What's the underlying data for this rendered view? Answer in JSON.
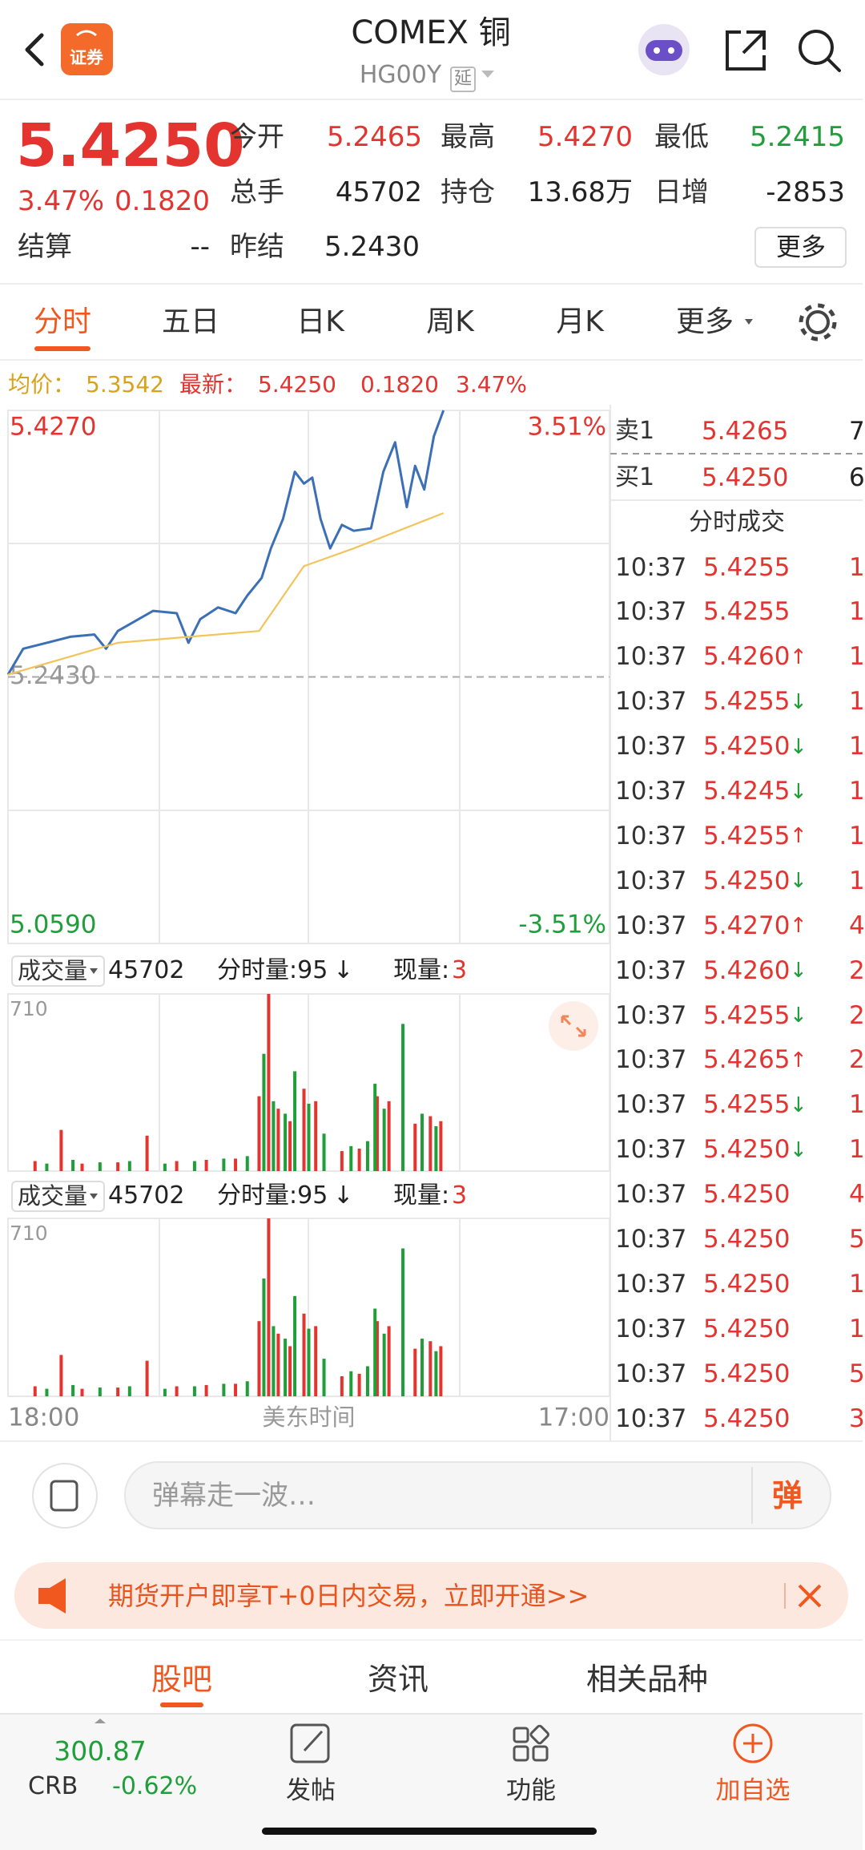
{
  "header": {
    "logo": "证券",
    "title": "COMEX 铜",
    "code": "HG00Y",
    "tag": "延"
  },
  "quote": {
    "price": "5.4250",
    "change_pct": "3.47%",
    "change": "0.1820",
    "fields": [
      {
        "label": "今开",
        "value": "5.2465"
      },
      {
        "label": "最高",
        "value": "5.4270"
      },
      {
        "label": "最低",
        "value": "5.2415"
      },
      {
        "label": "总手",
        "value": "45702"
      },
      {
        "label": "持仓",
        "value": "13.68万"
      },
      {
        "label": "日增",
        "value": "-2853"
      },
      {
        "label": "结算",
        "value": "--"
      },
      {
        "label": "昨结",
        "value": "5.2430"
      }
    ],
    "more": "更多"
  },
  "tabs": [
    "分时",
    "五日",
    "日K",
    "周K",
    "月K",
    "更多"
  ],
  "info": {
    "avg_label": "均价：",
    "avg": "5.3542",
    "latest_label": "最新：",
    "latest": "5.4250",
    "change": "0.1820",
    "change_pct": "3.47%"
  },
  "chart_data": [
    {
      "type": "line",
      "xlabel": "美东时间",
      "xlim": [
        0,
        1380
      ],
      "xticks": [
        {
          "value": 0,
          "label": "18:00"
        },
        {
          "value": 1380,
          "label": "17:00"
        }
      ],
      "ylim": [
        5.059,
        5.427
      ],
      "yticks": [
        {
          "value": 5.427,
          "label": "5.4270"
        },
        {
          "value": 5.243,
          "label": "5.2430"
        },
        {
          "value": 5.059,
          "label": "5.0590"
        }
      ],
      "y2lim": [
        -3.51,
        3.51
      ],
      "y2ticks": [
        {
          "value": 3.51,
          "label": "3.51%"
        },
        {
          "value": -3.51,
          "label": "-3.51%"
        }
      ],
      "series": [
        {
          "color": "#3b6fb6",
          "x": [
            0,
            35,
            89,
            143,
            198,
            225,
            252,
            333,
            387,
            414,
            441,
            482,
            522,
            549,
            582,
            603,
            631,
            658,
            679,
            698,
            717,
            739,
            766,
            793,
            833,
            861,
            888,
            915,
            934,
            955,
            977,
            999
          ],
          "values": [
            5.2446,
            5.2625,
            5.2666,
            5.2707,
            5.2723,
            5.2625,
            5.2747,
            5.2886,
            5.287,
            5.2666,
            5.2829,
            5.291,
            5.287,
            5.2992,
            5.3114,
            5.3317,
            5.3521,
            5.3846,
            5.3765,
            5.3806,
            5.3521,
            5.3317,
            5.348,
            5.3439,
            5.3456,
            5.3846,
            5.405,
            5.3602,
            5.3887,
            5.3724,
            5.4091,
            5.427
          ]
        },
        {
          "color": "#f2c45c",
          "x": [
            0,
            252,
            576,
            679,
            793,
            999
          ],
          "values": [
            5.2446,
            5.2666,
            5.2747,
            5.3195,
            5.3317,
            5.3561
          ]
        }
      ]
    },
    {
      "type": "bar",
      "xlim": [
        0,
        1380
      ],
      "ylim": [
        0,
        710
      ],
      "yticks": [
        710
      ],
      "series": [
        {
          "color": "#e3342f",
          "x": [
            62,
            122,
            170,
            252,
            319,
            387,
            455,
            522,
            576,
            598,
            620,
            647,
            679,
            706,
            766,
            806,
            847,
            874,
            934,
            969,
            993
          ],
          "values": [
            40,
            165,
            30,
            35,
            142,
            40,
            45,
            50,
            300,
            710,
            250,
            200,
            330,
            280,
            80,
            90,
            300,
            280,
            190,
            220,
            200
          ]
        },
        {
          "color": "#1f9e3a",
          "x": [
            89,
            149,
            211,
            279,
            360,
            428,
            495,
            549,
            587,
            609,
            636,
            658,
            690,
            725,
            787,
            825,
            842,
            863,
            906,
            950,
            982
          ],
          "values": [
            30,
            45,
            35,
            40,
            30,
            40,
            50,
            60,
            470,
            280,
            230,
            400,
            270,
            150,
            100,
            120,
            350,
            250,
            590,
            230,
            180
          ]
        }
      ]
    },
    {
      "type": "bar",
      "xlim": [
        0,
        1380
      ],
      "ylim": [
        0,
        710
      ],
      "yticks": [
        710
      ],
      "series": [
        {
          "color": "#e3342f",
          "x": [
            62,
            122,
            170,
            252,
            319,
            387,
            455,
            522,
            576,
            598,
            620,
            647,
            679,
            706,
            766,
            806,
            847,
            874,
            934,
            969,
            993
          ],
          "values": [
            40,
            165,
            30,
            35,
            142,
            40,
            45,
            50,
            300,
            710,
            250,
            200,
            330,
            280,
            80,
            90,
            300,
            280,
            190,
            220,
            200
          ]
        },
        {
          "color": "#1f9e3a",
          "x": [
            89,
            149,
            211,
            279,
            360,
            428,
            495,
            549,
            587,
            609,
            636,
            658,
            690,
            725,
            787,
            825,
            842,
            863,
            906,
            950,
            982
          ],
          "values": [
            30,
            45,
            35,
            40,
            30,
            40,
            50,
            60,
            470,
            280,
            230,
            400,
            270,
            150,
            100,
            120,
            350,
            250,
            590,
            230,
            180
          ]
        }
      ]
    }
  ],
  "volume_panels": [
    {
      "title": "成交量",
      "total": "45702",
      "tick": "分时量:95",
      "arrow": "↓",
      "now_label": "现量:",
      "now": "3"
    },
    {
      "title": "成交量",
      "total": "45702",
      "tick": "分时量:95",
      "arrow": "↓",
      "now_label": "现量:",
      "now": "3"
    }
  ],
  "order_book": {
    "rows": [
      {
        "side": "卖1",
        "price": "5.4265",
        "volume": "7"
      },
      {
        "side": "买1",
        "price": "5.4250",
        "volume": "6"
      }
    ],
    "trades_title": "分时成交",
    "trades": [
      {
        "time": "10:37",
        "price": "5.4255",
        "dir": "",
        "volume": "1"
      },
      {
        "time": "10:37",
        "price": "5.4255",
        "dir": "",
        "volume": "1"
      },
      {
        "time": "10:37",
        "price": "5.4260",
        "dir": "↑",
        "volume": "1"
      },
      {
        "time": "10:37",
        "price": "5.4255",
        "dir": "↓",
        "volume": "1"
      },
      {
        "time": "10:37",
        "price": "5.4250",
        "dir": "↓",
        "volume": "1"
      },
      {
        "time": "10:37",
        "price": "5.4245",
        "dir": "↓",
        "volume": "1"
      },
      {
        "time": "10:37",
        "price": "5.4255",
        "dir": "↑",
        "volume": "1"
      },
      {
        "time": "10:37",
        "price": "5.4250",
        "dir": "↓",
        "volume": "1"
      },
      {
        "time": "10:37",
        "price": "5.4270",
        "dir": "↑",
        "volume": "4"
      },
      {
        "time": "10:37",
        "price": "5.4260",
        "dir": "↓",
        "volume": "2"
      },
      {
        "time": "10:37",
        "price": "5.4255",
        "dir": "↓",
        "volume": "2"
      },
      {
        "time": "10:37",
        "price": "5.4265",
        "dir": "↑",
        "volume": "2"
      },
      {
        "time": "10:37",
        "price": "5.4255",
        "dir": "↓",
        "volume": "1"
      },
      {
        "time": "10:37",
        "price": "5.4250",
        "dir": "↓",
        "volume": "1"
      },
      {
        "time": "10:37",
        "price": "5.4250",
        "dir": "",
        "volume": "4"
      },
      {
        "time": "10:37",
        "price": "5.4250",
        "dir": "",
        "volume": "5"
      },
      {
        "time": "10:37",
        "price": "5.4250",
        "dir": "",
        "volume": "1"
      },
      {
        "time": "10:37",
        "price": "5.4250",
        "dir": "",
        "volume": "1"
      },
      {
        "time": "10:37",
        "price": "5.4250",
        "dir": "",
        "volume": "5"
      },
      {
        "time": "10:37",
        "price": "5.4250",
        "dir": "",
        "volume": "3"
      }
    ]
  },
  "comment": {
    "placeholder": "弹幕走一波…",
    "button": "弹"
  },
  "banner": {
    "text": "期货开户即享T+0日内交易，立即开通>>"
  },
  "bottom_tabs": [
    "股吧",
    "资讯",
    "相关品种"
  ],
  "nav": {
    "index_value": "300.87",
    "index_name": "CRB",
    "index_change": "-0.62%",
    "items": [
      "发帖",
      "功能",
      "加自选"
    ]
  }
}
